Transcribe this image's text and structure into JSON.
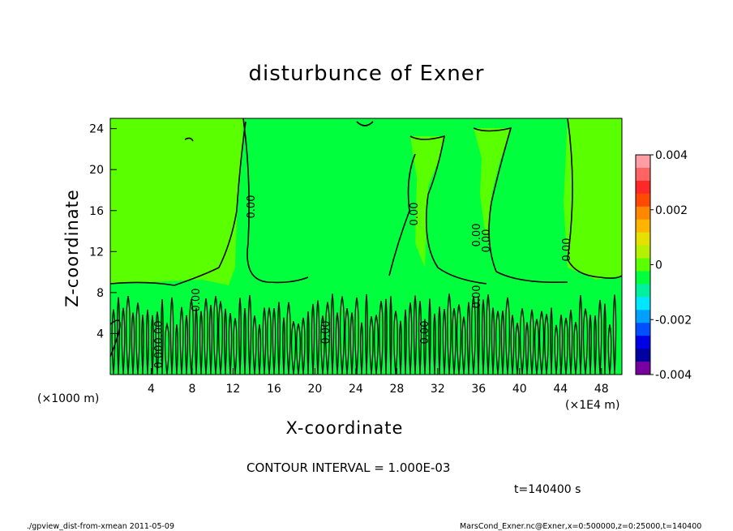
{
  "chart_data": {
    "type": "contour",
    "title": "disturbunce of Exner",
    "xlabel": "X-coordinate",
    "ylabel": "Z-coordinate",
    "x_unit_label": "(×1000 m)",
    "x_unit_label_right": "(×1E4 m)",
    "xlim": [
      0,
      50
    ],
    "ylim": [
      0,
      25
    ],
    "xticks": [
      4,
      8,
      12,
      16,
      20,
      24,
      28,
      32,
      36,
      40,
      44,
      48
    ],
    "yticks": [
      4,
      8,
      12,
      16,
      20,
      24
    ],
    "colorbar": {
      "range": [
        -0.004,
        0.004
      ],
      "ticks": [
        "0.004",
        "0.002",
        "0",
        "-0.002",
        "-0.004"
      ],
      "colors": [
        "#ff9da6",
        "#ff6464",
        "#ff2828",
        "#ff4a00",
        "#ff8800",
        "#ffb400",
        "#e6e000",
        "#b4f000",
        "#5aff00",
        "#00ff3c",
        "#00f0a0",
        "#00e6ff",
        "#00a0ff",
        "#0050ff",
        "#0000e6",
        "#0000a0",
        "#7800a0"
      ]
    },
    "contour_labels": [
      "0.00",
      "0.00",
      "0.00",
      "0.00",
      "0.00",
      "0.00",
      "0.00",
      "0.00",
      "0.00",
      "0.00",
      "0.00"
    ],
    "field_colors": {
      "background": "#00ff3c",
      "regions": "#5aff00"
    }
  },
  "footer": {
    "contour_interval": "CONTOUR INTERVAL = 1.000E-03",
    "time": "t=140400 s",
    "left_note": "./gpview_dist-from-xmean  2011-05-09",
    "right_note": "MarsCond_Exner.nc@Exner,x=0:500000,z=0:25000,t=140400"
  }
}
